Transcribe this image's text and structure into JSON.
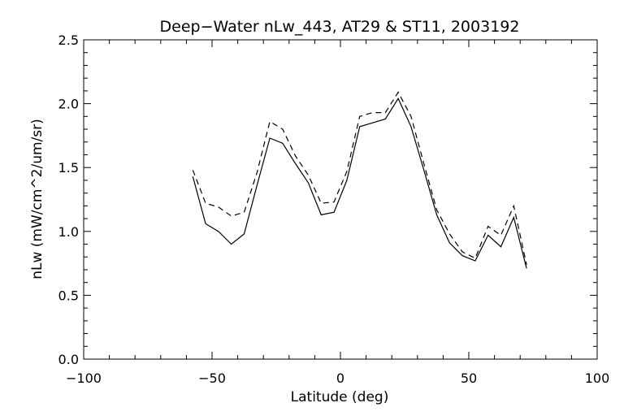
{
  "chart_data": {
    "type": "line",
    "title": "Deep−Water nLw_443, AT29 & ST11, 2003192",
    "xlabel": "Latitude (deg)",
    "ylabel": "nLw (mW/cm^2/um/sr)",
    "xlim": [
      -100,
      100
    ],
    "ylim": [
      0.0,
      2.5
    ],
    "xticks": [
      -100,
      -50,
      0,
      50,
      100
    ],
    "xtick_labels": [
      "−100",
      "−50",
      "0",
      "50",
      "100"
    ],
    "yticks": [
      0.0,
      0.5,
      1.0,
      1.5,
      2.0,
      2.5
    ],
    "ytick_labels": [
      "0.0",
      "0.5",
      "1.0",
      "1.5",
      "2.0",
      "2.5"
    ],
    "grid": false,
    "series": [
      {
        "style": "solid",
        "x": [
          -57.5,
          -52.5,
          -47.5,
          -42.5,
          -37.5,
          -32.5,
          -27.5,
          -22.5,
          -17.5,
          -12.5,
          -7.5,
          -2.5,
          2.5,
          7.5,
          12.5,
          17.5,
          22.5,
          27.5,
          32.5,
          37.5,
          42.5,
          47.5,
          52.5,
          57.5,
          62.5,
          67.5,
          72.5
        ],
        "y": [
          1.43,
          1.06,
          1.0,
          0.9,
          0.98,
          1.36,
          1.73,
          1.69,
          1.53,
          1.38,
          1.13,
          1.15,
          1.4,
          1.82,
          1.85,
          1.88,
          2.04,
          1.82,
          1.48,
          1.13,
          0.91,
          0.81,
          0.77,
          0.97,
          0.88,
          1.11,
          0.71
        ]
      },
      {
        "style": "dashed",
        "x": [
          -57.5,
          -52.5,
          -47.5,
          -42.5,
          -37.5,
          -32.5,
          -27.5,
          -22.5,
          -17.5,
          -12.5,
          -7.5,
          -2.5,
          2.5,
          7.5,
          12.5,
          17.5,
          22.5,
          27.5,
          32.5,
          37.5,
          42.5,
          47.5,
          52.5,
          57.5,
          62.5,
          67.5,
          72.5
        ],
        "y": [
          1.48,
          1.22,
          1.19,
          1.12,
          1.15,
          1.46,
          1.86,
          1.8,
          1.59,
          1.44,
          1.22,
          1.23,
          1.47,
          1.9,
          1.93,
          1.93,
          2.09,
          1.9,
          1.53,
          1.17,
          0.98,
          0.84,
          0.79,
          1.04,
          0.97,
          1.2,
          0.74
        ]
      }
    ]
  }
}
